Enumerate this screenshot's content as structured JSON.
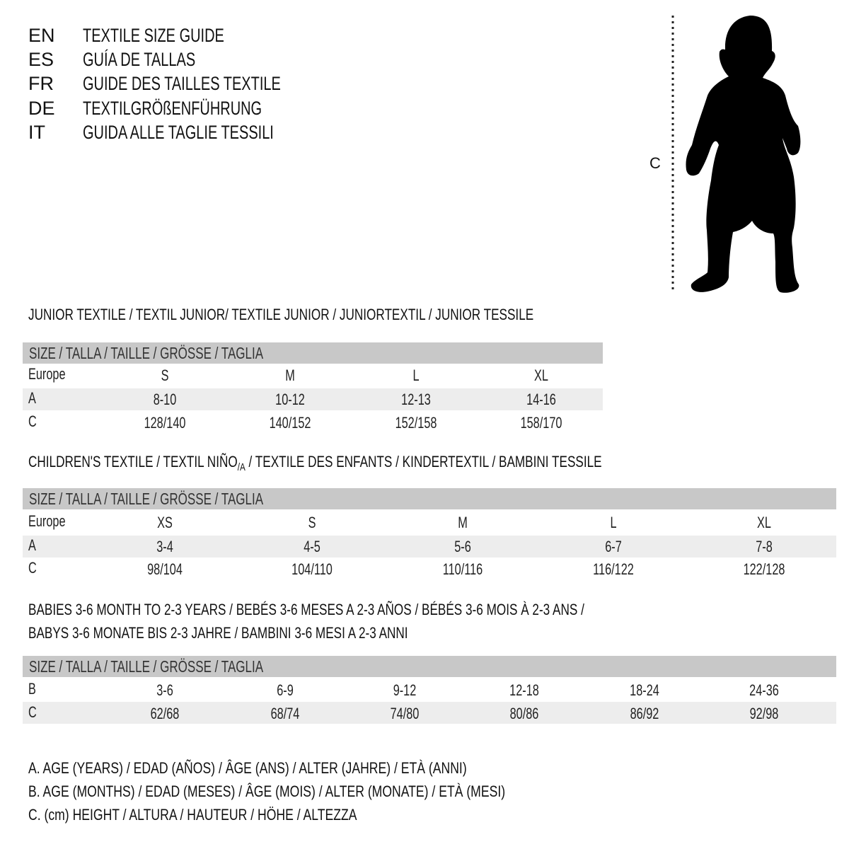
{
  "languages": [
    {
      "code": "EN",
      "text": "TEXTILE SIZE GUIDE"
    },
    {
      "code": "ES",
      "text": "GUÍA DE TALLAS"
    },
    {
      "code": "FR",
      "text": "GUIDE DES TAILLES TEXTILE"
    },
    {
      "code": "DE",
      "text": "TEXTILGRÖßENFÜHRUNG"
    },
    {
      "code": "IT",
      "text": "GUIDA ALLE TAGLIE TESSILI"
    }
  ],
  "figure": {
    "label": "C",
    "icon": "child-silhouette-icon"
  },
  "junior": {
    "title": "JUNIOR TEXTILE / TEXTIL JUNIOR/ TEXTILE JUNIOR / JUNIORTEXTIL / JUNIOR TESSILE",
    "header": "SIZE / TALLA / TAILLE / GRÖSSE / TAGLIA",
    "rows": [
      {
        "label": "Europe",
        "values": [
          "S",
          "M",
          "L",
          "XL"
        ]
      },
      {
        "label": "A",
        "values": [
          "8-10",
          "10-12",
          "12-13",
          "14-16"
        ]
      },
      {
        "label": "C",
        "values": [
          "128/140",
          "140/152",
          "152/158",
          "158/170"
        ]
      }
    ]
  },
  "children": {
    "title_pre": "CHILDREN'S TEXTILE / TEXTIL NIÑO",
    "title_sub": "/A",
    "title_post": " / TEXTILE DES ENFANTS / KINDERTEXTIL / BAMBINI TESSILE",
    "header": "SIZE / TALLA / TAILLE / GRÖSSE / TAGLIA",
    "rows": [
      {
        "label": "Europe",
        "values": [
          "XS",
          "S",
          "M",
          "L",
          "XL"
        ]
      },
      {
        "label": "A",
        "values": [
          "3-4",
          "4-5",
          "5-6",
          "6-7",
          "7-8"
        ]
      },
      {
        "label": "C",
        "values": [
          "98/104",
          "104/110",
          "110/116",
          "116/122",
          "122/128"
        ]
      }
    ]
  },
  "babies": {
    "title_line1": "BABIES 3-6 MONTH TO 2-3 YEARS / BEBÉS 3-6 MESES A 2-3 AÑOS / BÉBÉS 3-6 MOIS À 2-3 ANS /",
    "title_line2": "BABYS 3-6 MONATE BIS 2-3 JAHRE / BAMBINI 3-6 MESI A 2-3 ANNI",
    "header": "SIZE / TALLA / TAILLE / GRÖSSE / TAGLIA",
    "rows": [
      {
        "label": "B",
        "values": [
          "3-6",
          "6-9",
          "9-12",
          "12-18",
          "18-24",
          "24-36"
        ]
      },
      {
        "label": "C",
        "values": [
          "62/68",
          "68/74",
          "74/80",
          "80/86",
          "86/92",
          "92/98"
        ]
      }
    ]
  },
  "legend": [
    "A. AGE (YEARS) / EDAD (AÑOS) / ÂGE (ANS) / ALTER (JAHRE) / ETÀ (ANNI)",
    "B. AGE (MONTHS) / EDAD (MESES) / ÂGE (MOIS) / ALTER (MONATE) / ETÀ (MESI)",
    "C. (cm) HEIGHT / ALTURA / HAUTEUR / HÖHE / ALTEZZA"
  ],
  "colors": {
    "header_bar": "#c8c8c8",
    "shaded_row": "#ededed",
    "text": "#111111"
  }
}
